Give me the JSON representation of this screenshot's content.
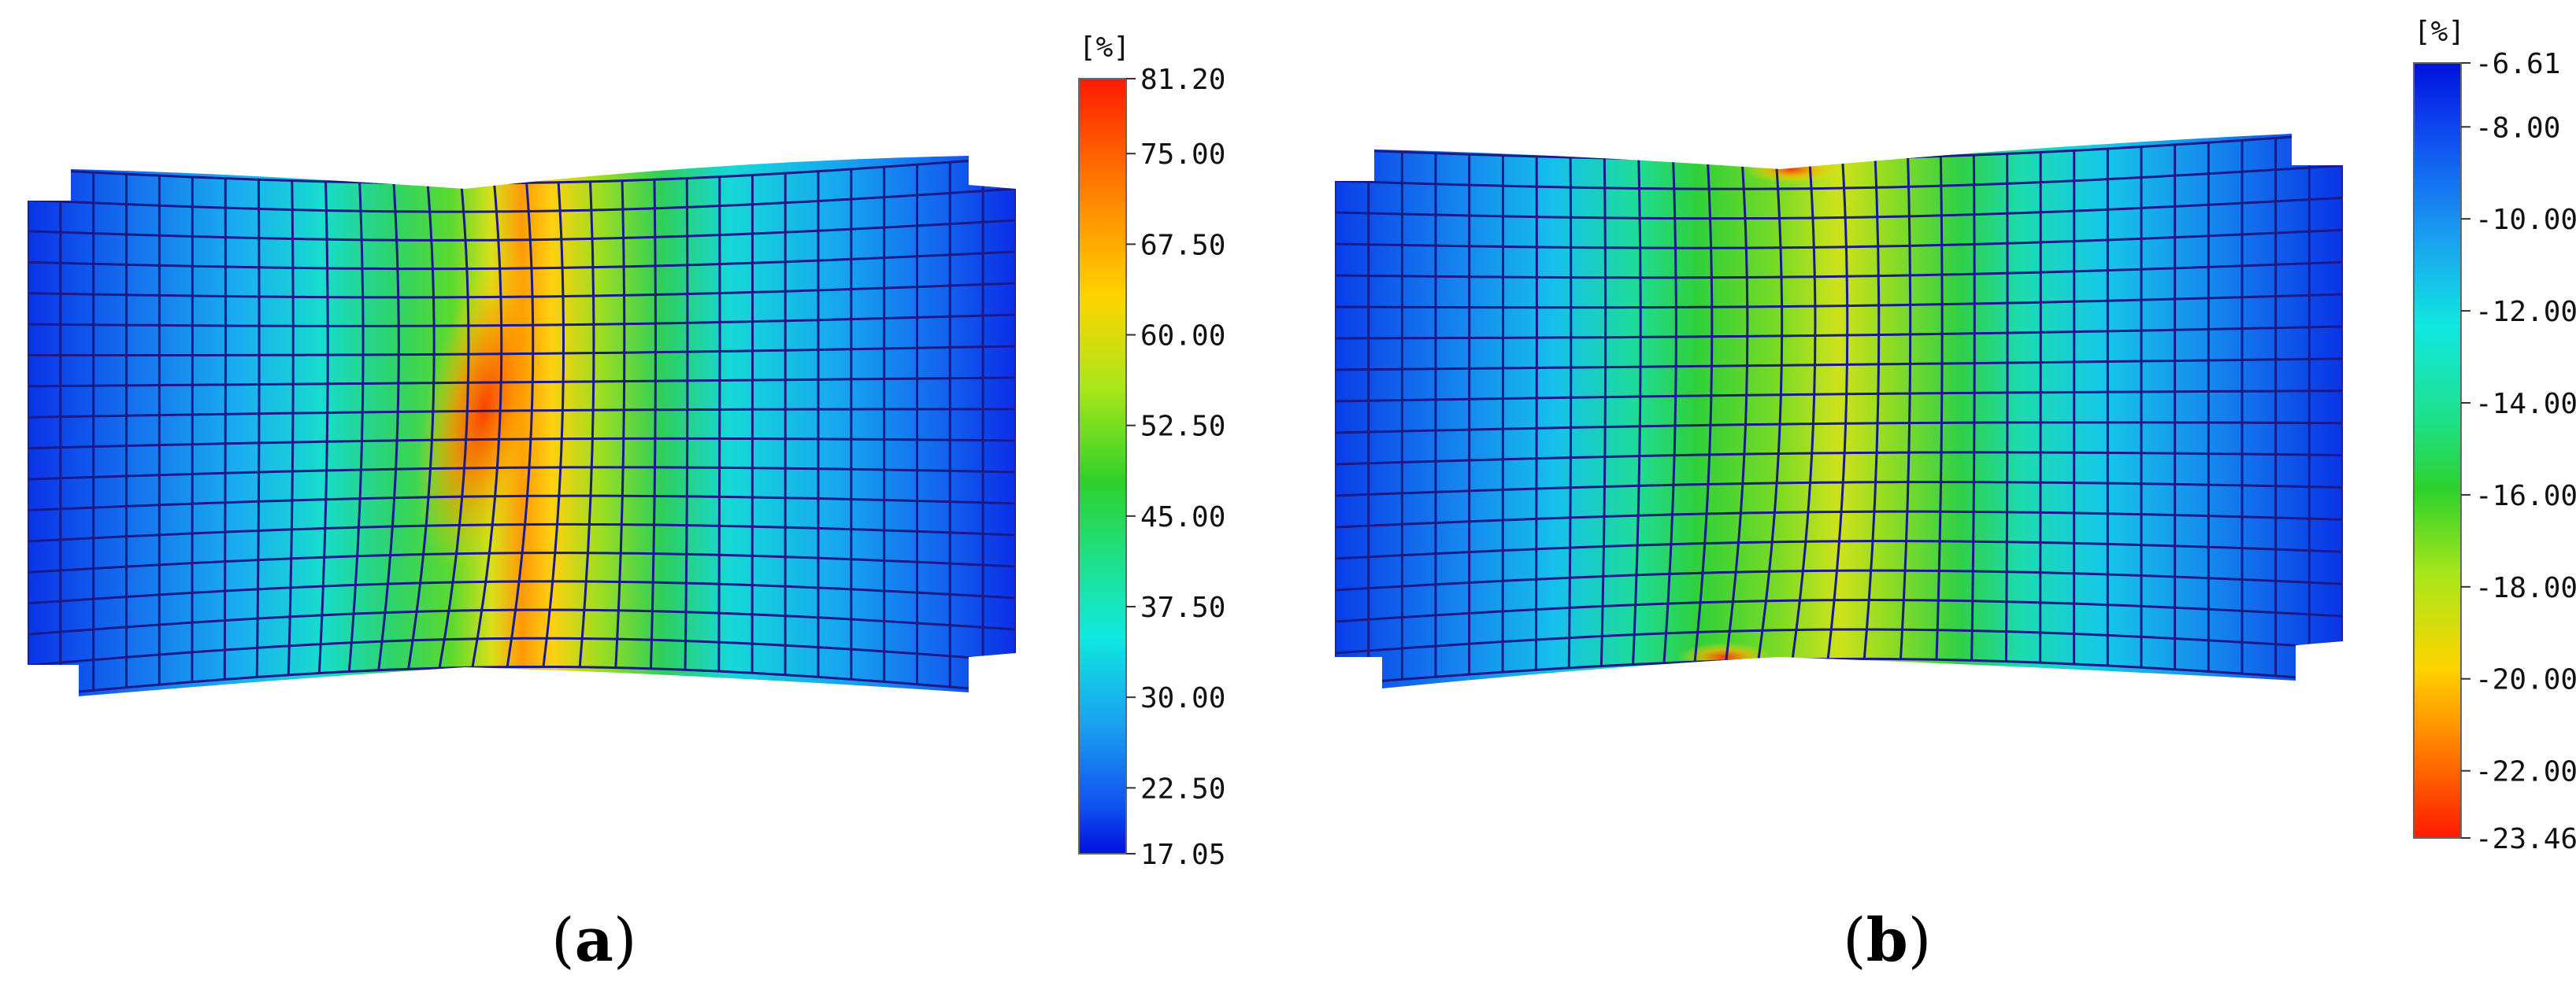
{
  "figure": {
    "panels": [
      {
        "id": "a",
        "caption_open": "(",
        "caption_letter": "a",
        "caption_close": ")",
        "colorbar": {
          "unit": "[%]",
          "max": 81.2,
          "min": 17.05,
          "ticks": [
            "81.20",
            "75.00",
            "67.50",
            "60.00",
            "52.50",
            "45.00",
            "37.50",
            "30.00",
            "22.50",
            "17.05"
          ],
          "tick_values": [
            81.2,
            75.0,
            67.5,
            60.0,
            52.5,
            45.0,
            37.5,
            30.0,
            22.5,
            17.05
          ],
          "colors_top_to_bottom": [
            "#ff1a00",
            "#ff8a00",
            "#ffd400",
            "#b8e81a",
            "#2fd12b",
            "#1fe08a",
            "#10e8e0",
            "#1aa8f0",
            "#1060f0",
            "#0010e0"
          ]
        }
      },
      {
        "id": "b",
        "caption_open": "(",
        "caption_letter": "b",
        "caption_close": ")",
        "colorbar": {
          "unit": "[%]",
          "max": -6.61,
          "min": -23.46,
          "ticks": [
            "-6.61",
            "-8.00",
            "-10.00",
            "-12.00",
            "-14.00",
            "-16.00",
            "-18.00",
            "-20.00",
            "-22.00",
            "-23.46"
          ],
          "tick_values": [
            -6.61,
            -8.0,
            -10.0,
            -12.0,
            -14.0,
            -16.0,
            -18.0,
            -20.0,
            -22.0,
            -23.46
          ],
          "colors_top_to_bottom": [
            "#0010e0",
            "#1060f0",
            "#1aa8f0",
            "#10e8e0",
            "#1fe08a",
            "#2fd12b",
            "#b8e81a",
            "#ffd400",
            "#ff8a00",
            "#ff1a00"
          ]
        }
      }
    ]
  }
}
